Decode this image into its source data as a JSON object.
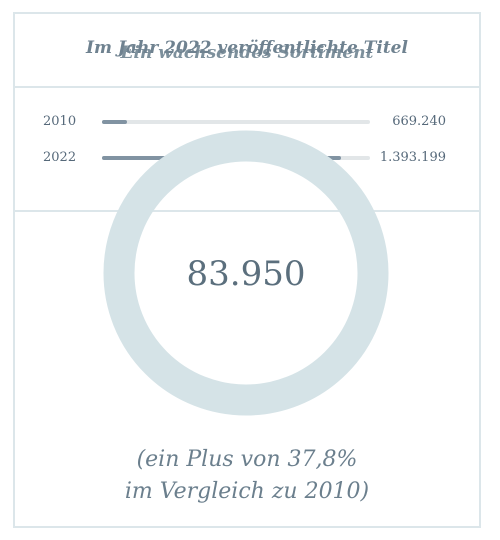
{
  "header": {
    "title_a": "Im Jahr 2022 veröffentlichte Titel",
    "title_b": "Ein wachsendes Sortiment"
  },
  "bars": [
    {
      "year": "2010",
      "count": "669.240",
      "fraction": 0.095
    },
    {
      "year": "2022",
      "count": "1.393.199",
      "fraction": 0.89
    }
  ],
  "donut": {
    "value": "83.950",
    "ring_color": "#d5e3e7"
  },
  "caption": {
    "line1": "(ein Plus von 37,8%",
    "line2": "im Vergleich zu 2010)"
  },
  "colors": {
    "bar_fill": "#8193a2",
    "bar_track": "#e2e6e8",
    "border": "#dce6ea"
  }
}
